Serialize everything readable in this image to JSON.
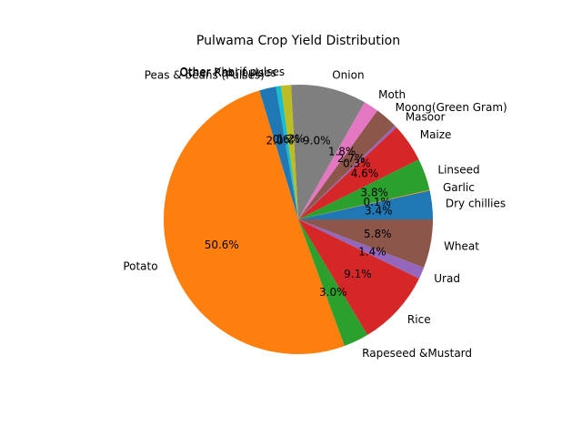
{
  "chart_data": {
    "type": "pie",
    "title": "Pulwama Crop Yield Distribution",
    "start_angle_deg": 0,
    "direction": "counterclockwise",
    "slices": [
      {
        "label": "Dry chillies",
        "value": 3.4,
        "pct_text": "3.4%",
        "color": "#1f77b4"
      },
      {
        "label": "Garlic",
        "value": 0.1,
        "pct_text": "0.1%",
        "color": "#ff7f0e"
      },
      {
        "label": "Linseed",
        "value": 3.8,
        "pct_text": "3.8%",
        "color": "#2ca02c"
      },
      {
        "label": "Maize",
        "value": 4.6,
        "pct_text": "4.6%",
        "color": "#d62728"
      },
      {
        "label": "Masoor",
        "value": 0.3,
        "pct_text": "0.3%",
        "color": "#9467bd"
      },
      {
        "label": "Moong(Green Gram)",
        "value": 2.7,
        "pct_text": "2.7%",
        "color": "#8c564b"
      },
      {
        "label": "Moth",
        "value": 1.8,
        "pct_text": "1.8%",
        "color": "#e377c2"
      },
      {
        "label": "Onion",
        "value": 9.0,
        "pct_text": "9.0%",
        "color": "#7f7f7f"
      },
      {
        "label": "Other Kharif pulses",
        "value": 1.2,
        "pct_text": "1.2%",
        "color": "#bcbd22"
      },
      {
        "label": "Other Rabi pulses",
        "value": 0.6,
        "pct_text": "0.6%",
        "color": "#17becf"
      },
      {
        "label": "Peas & beans (Pulses)",
        "value": 2.0,
        "pct_text": "2.0%",
        "color": "#1f77b4"
      },
      {
        "label": "Potato",
        "value": 50.6,
        "pct_text": "50.6%",
        "color": "#ff7f0e"
      },
      {
        "label": "Rapeseed &Mustard",
        "value": 3.0,
        "pct_text": "3.0%",
        "color": "#2ca02c"
      },
      {
        "label": "Rice",
        "value": 9.1,
        "pct_text": "9.1%",
        "color": "#d62728"
      },
      {
        "label": "Urad",
        "value": 1.4,
        "pct_text": "1.4%",
        "color": "#9467bd"
      },
      {
        "label": "Wheat",
        "value": 5.8,
        "pct_text": "5.8%",
        "color": "#8c564b"
      }
    ]
  }
}
